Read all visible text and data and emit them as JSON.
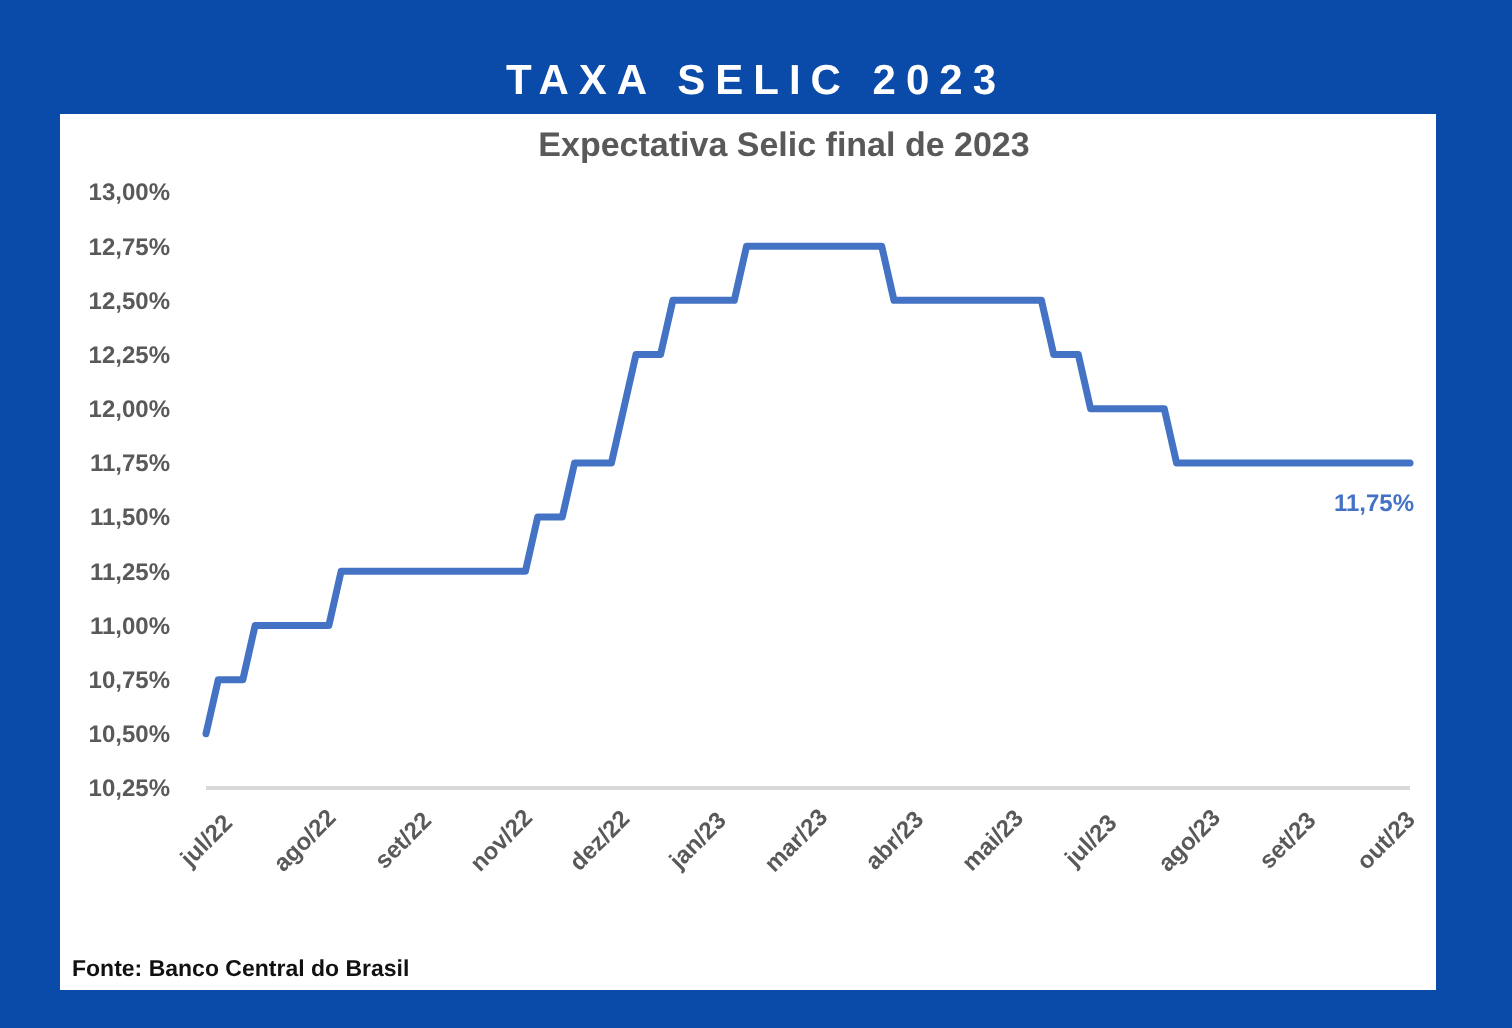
{
  "chart_data": {
    "type": "line",
    "title": "TAXA SELIC 2023",
    "subtitle": "Expectativa Selic final de 2023",
    "annotations": [
      {
        "text": "11,75%",
        "y": 11.75
      },
      "Fonte: Banco Central do Brasil"
    ],
    "categories": [
      "jul/22",
      null,
      null,
      null,
      null,
      null,
      null,
      null,
      "ago/22",
      null,
      null,
      null,
      null,
      null,
      null,
      null,
      "set/22",
      null,
      null,
      null,
      null,
      null,
      null,
      null,
      "nov/22",
      null,
      null,
      null,
      null,
      null,
      null,
      null,
      "dez/22",
      null,
      null,
      null,
      null,
      null,
      null,
      null,
      "jan/23",
      null,
      null,
      null,
      null,
      null,
      null,
      null,
      "mar/23",
      null,
      null,
      null,
      null,
      null,
      null,
      null,
      "abr/23",
      null,
      null,
      null,
      null,
      null,
      null,
      null,
      "mai/23",
      null,
      null,
      null,
      null,
      null,
      null,
      null,
      "jul/23",
      null,
      null,
      null,
      null,
      null,
      null,
      null,
      "ago/23",
      null,
      null,
      null,
      null,
      null,
      null,
      null,
      "set/23",
      null,
      null,
      null,
      null,
      null,
      null,
      null,
      "out/23",
      null,
      null
    ],
    "series": [
      {
        "color": "#4472c4",
        "values": [
          10.5,
          10.75,
          10.75,
          10.75,
          11,
          11,
          11,
          11,
          11,
          11,
          11,
          11.25,
          11.25,
          11.25,
          11.25,
          11.25,
          11.25,
          11.25,
          11.25,
          11.25,
          11.25,
          11.25,
          11.25,
          11.25,
          11.25,
          11.25,
          11.25,
          11.5,
          11.5,
          11.5,
          11.75,
          11.75,
          11.75,
          11.75,
          12,
          12.25,
          12.25,
          12.25,
          12.5,
          12.5,
          12.5,
          12.5,
          12.5,
          12.5,
          12.75,
          12.75,
          12.75,
          12.75,
          12.75,
          12.75,
          12.75,
          12.75,
          12.75,
          12.75,
          12.75,
          12.75,
          12.5,
          12.5,
          12.5,
          12.5,
          12.5,
          12.5,
          12.5,
          12.5,
          12.5,
          12.5,
          12.5,
          12.5,
          12.5,
          12.25,
          12.25,
          12.25,
          12,
          12,
          12,
          12,
          12,
          12,
          12,
          11.75,
          11.75,
          11.75,
          11.75,
          11.75,
          11.75,
          11.75,
          11.75,
          11.75,
          11.75,
          11.75,
          11.75,
          11.75,
          11.75,
          11.75,
          11.75,
          11.75,
          11.75,
          11.75,
          11.75
        ]
      }
    ],
    "ylim": [
      10.25,
      13
    ],
    "yticks": [
      {
        "value": 10.25,
        "label": "10,25%"
      },
      {
        "value": 10.5,
        "label": "10,50%"
      },
      {
        "value": 10.75,
        "label": "10,75%"
      },
      {
        "value": 11,
        "label": "11,00%"
      },
      {
        "value": 11.25,
        "label": "11,25%"
      },
      {
        "value": 11.5,
        "label": "11,50%"
      },
      {
        "value": 11.75,
        "label": "11,75%"
      },
      {
        "value": 12,
        "label": "12,00%"
      },
      {
        "value": 12.25,
        "label": "12,25%"
      },
      {
        "value": 12.5,
        "label": "12,50%"
      },
      {
        "value": 12.75,
        "label": "12,75%"
      },
      {
        "value": 13,
        "label": "13,00%"
      }
    ],
    "grid": false,
    "marker": "none",
    "line_style": "solid"
  }
}
